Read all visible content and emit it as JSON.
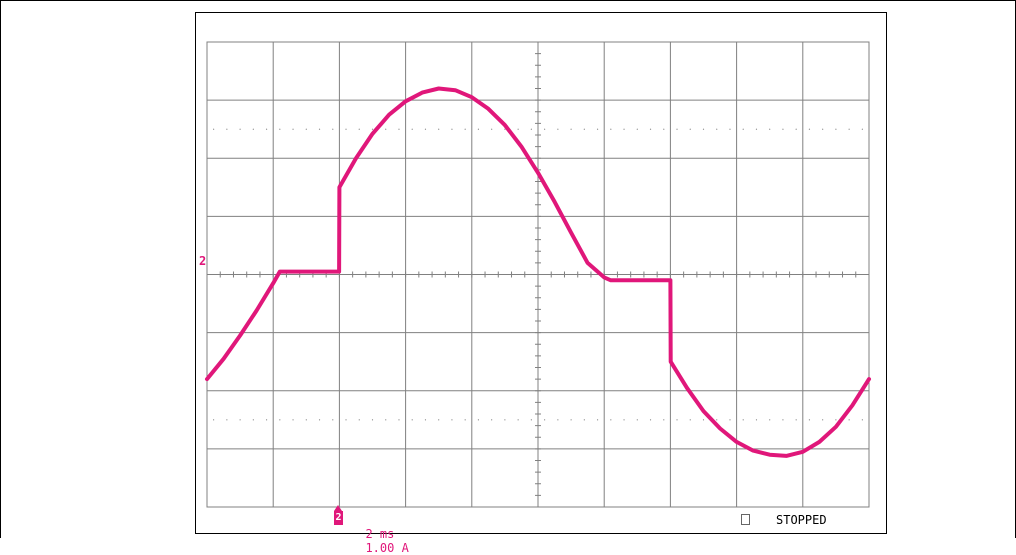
{
  "scope": {
    "channel_marker": "2",
    "trigger_marker": "2",
    "timebase": "2 ms",
    "scale": "1.00 A",
    "status": "STOPPED",
    "trace_color": "#e0177a",
    "grid_color": "#808080"
  },
  "chart_data": {
    "type": "line",
    "title": "",
    "xlabel": "",
    "ylabel": "",
    "x_divisions": 10,
    "y_divisions": 8,
    "xlim": [
      0,
      20
    ],
    "ylim": [
      -4,
      4
    ],
    "x_units": "ms",
    "y_units": "A",
    "grid": true,
    "series": [
      {
        "name": "",
        "x": [
          0,
          0.5,
          1.0,
          1.5,
          2.0,
          2.2,
          3.0,
          3.99,
          4.0,
          4.5,
          5.0,
          5.5,
          6.0,
          6.5,
          7.0,
          7.5,
          8.0,
          8.5,
          9.0,
          9.5,
          10.0,
          10.5,
          11.0,
          11.5,
          12.0,
          12.2,
          14.0,
          14.01,
          14.5,
          15.0,
          15.5,
          16.0,
          16.5,
          17.0,
          17.5,
          18.0,
          18.5,
          19.0,
          19.5,
          20.0
        ],
        "y": [
          -1.8,
          -1.45,
          -1.05,
          -0.62,
          -0.15,
          0.05,
          0.05,
          0.05,
          1.5,
          2.0,
          2.42,
          2.75,
          2.98,
          3.13,
          3.2,
          3.17,
          3.05,
          2.85,
          2.57,
          2.2,
          1.75,
          1.25,
          0.72,
          0.2,
          -0.05,
          -0.1,
          -0.1,
          -1.5,
          -1.95,
          -2.35,
          -2.65,
          -2.88,
          -3.03,
          -3.1,
          -3.12,
          -3.05,
          -2.88,
          -2.62,
          -2.25,
          -1.8
        ]
      }
    ]
  }
}
